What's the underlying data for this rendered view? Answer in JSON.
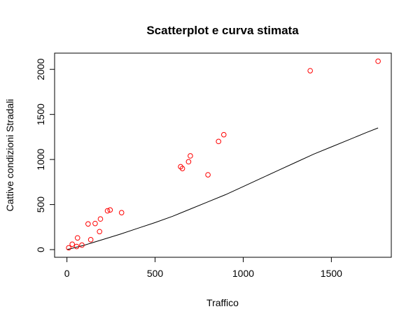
{
  "chart_data": {
    "type": "scatter",
    "title": "Scatterplot e curva stimata",
    "xlabel": "Traffico",
    "ylabel": "Cattive condizioni Stradali",
    "xlim": [
      -70,
      1840
    ],
    "ylim": [
      -85,
      2180
    ],
    "x_ticks": [
      0,
      500,
      1000,
      1500
    ],
    "y_ticks": [
      0,
      500,
      1000,
      1500,
      2000
    ],
    "x_tick_labels": [
      "0",
      "500",
      "1000",
      "1500"
    ],
    "y_tick_labels": [
      "0",
      "500",
      "1000",
      "1500",
      "2000"
    ],
    "grid": false,
    "point_color": "#ff0000",
    "curve_color": "#000000",
    "series": [
      {
        "type": "scatter",
        "x": [
          10,
          30,
          55,
          60,
          85,
          120,
          135,
          160,
          185,
          190,
          230,
          245,
          310,
          645,
          655,
          690,
          700,
          800,
          860,
          890,
          1380,
          1765
        ],
        "y": [
          20,
          60,
          35,
          130,
          50,
          285,
          110,
          290,
          200,
          340,
          430,
          440,
          410,
          920,
          900,
          975,
          1040,
          830,
          1200,
          1275,
          1985,
          2090
        ]
      },
      {
        "type": "line",
        "x": [
          0,
          100,
          200,
          300,
          400,
          500,
          600,
          700,
          800,
          900,
          1000,
          1100,
          1200,
          1300,
          1400,
          1500,
          1600,
          1700,
          1765
        ],
        "y": [
          0,
          50,
          110,
          170,
          235,
          300,
          370,
          450,
          530,
          610,
          700,
          790,
          880,
          970,
          1060,
          1140,
          1220,
          1300,
          1350
        ]
      }
    ]
  }
}
